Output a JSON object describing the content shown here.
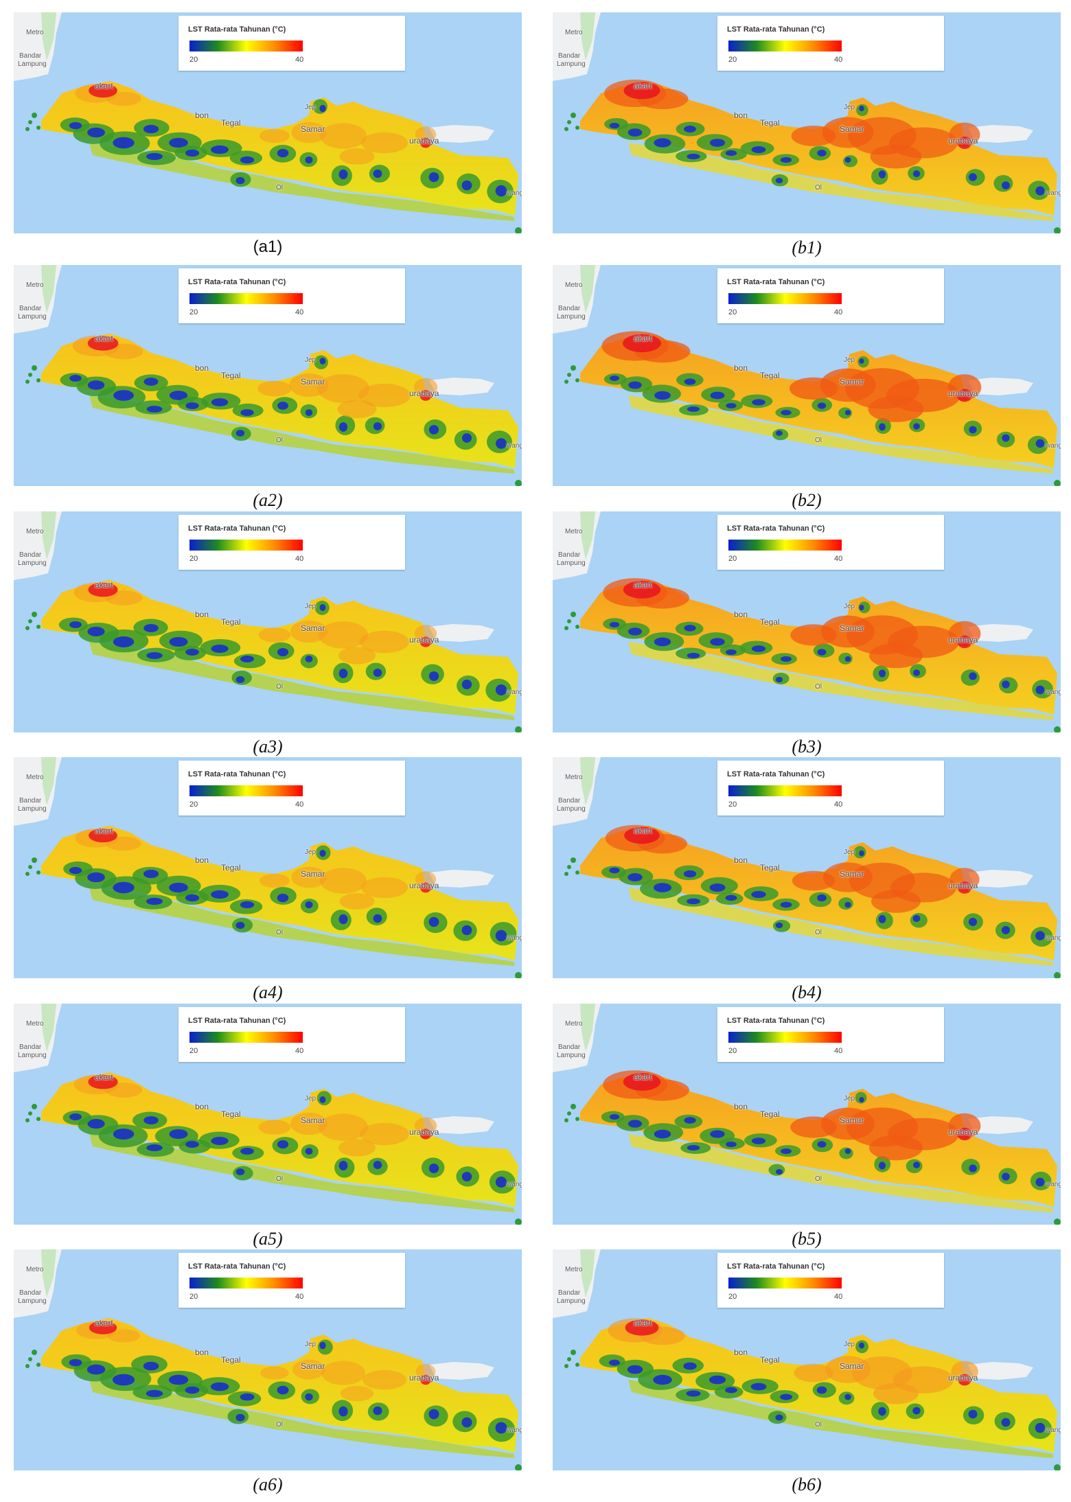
{
  "legend": {
    "title": "LST Rata-rata Tahunan (°C)",
    "min": "20",
    "max": "40",
    "scale_colors": [
      "#0a1ed2",
      "#1e8c1e",
      "#ffff00",
      "#ff8c00",
      "#ff0000"
    ]
  },
  "place_labels": {
    "metro": "Metro",
    "bandar": "Bandar",
    "lampung": "Lampung",
    "jakarta": "akart",
    "cirebon": "bon",
    "tegal": "Tegal",
    "semarang": "Samar",
    "jepara": "Jep",
    "surabaya": "urabaya",
    "banyuwangi": "wang",
    "yogya": "Ol"
  },
  "colors": {
    "sea": "#aad3f5",
    "land_other": "#eef0f2",
    "island_hot": "#f9c11b"
  },
  "panels": [
    {
      "caption": "(a1)",
      "heat": 0.35
    },
    {
      "caption": "(b1)",
      "heat": 0.75
    },
    {
      "caption": "(a2)",
      "heat": 0.45
    },
    {
      "caption": "(b2)",
      "heat": 0.85
    },
    {
      "caption": "(a3)",
      "heat": 0.4
    },
    {
      "caption": "(b3)",
      "heat": 0.8
    },
    {
      "caption": "(a4)",
      "heat": 0.35
    },
    {
      "caption": "(b4)",
      "heat": 0.7
    },
    {
      "caption": "(a5)",
      "heat": 0.4
    },
    {
      "caption": "(b5)",
      "heat": 0.8
    },
    {
      "caption": "(a6)",
      "heat": 0.3
    },
    {
      "caption": "(b6)",
      "heat": 0.6
    }
  ]
}
